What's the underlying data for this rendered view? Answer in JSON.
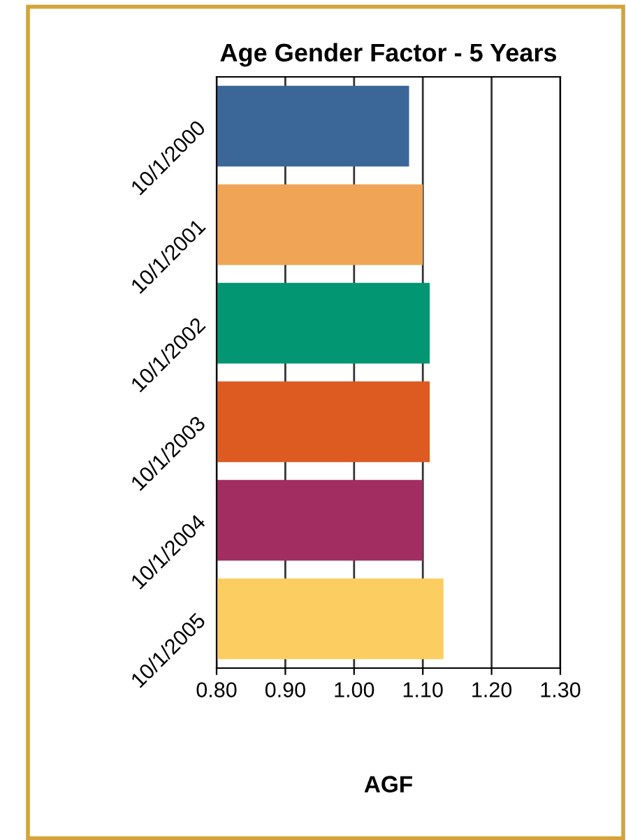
{
  "chart_data": {
    "type": "bar",
    "orientation": "horizontal",
    "title": "Age Gender Factor - 5 Years",
    "xlabel": "AGF",
    "categories": [
      "10/1/2000",
      "10/1/2001",
      "10/1/2002",
      "10/1/2003",
      "10/1/2004",
      "10/1/2005"
    ],
    "values": [
      1.08,
      1.1,
      1.11,
      1.11,
      1.1,
      1.13
    ],
    "colors": [
      "#3b6798",
      "#efa555",
      "#029673",
      "#dd5a20",
      "#a22d61",
      "#fccd60"
    ],
    "xlim": [
      0.8,
      1.3
    ],
    "xticks": [
      {
        "value": 0.8,
        "label": "0.80"
      },
      {
        "value": 0.9,
        "label": "0.90"
      },
      {
        "value": 1.0,
        "label": "1.00"
      },
      {
        "value": 1.1,
        "label": "1.10"
      },
      {
        "value": 1.2,
        "label": "1.20"
      },
      {
        "value": 1.3,
        "label": "1.30"
      }
    ],
    "grid": "x",
    "legend": false
  }
}
